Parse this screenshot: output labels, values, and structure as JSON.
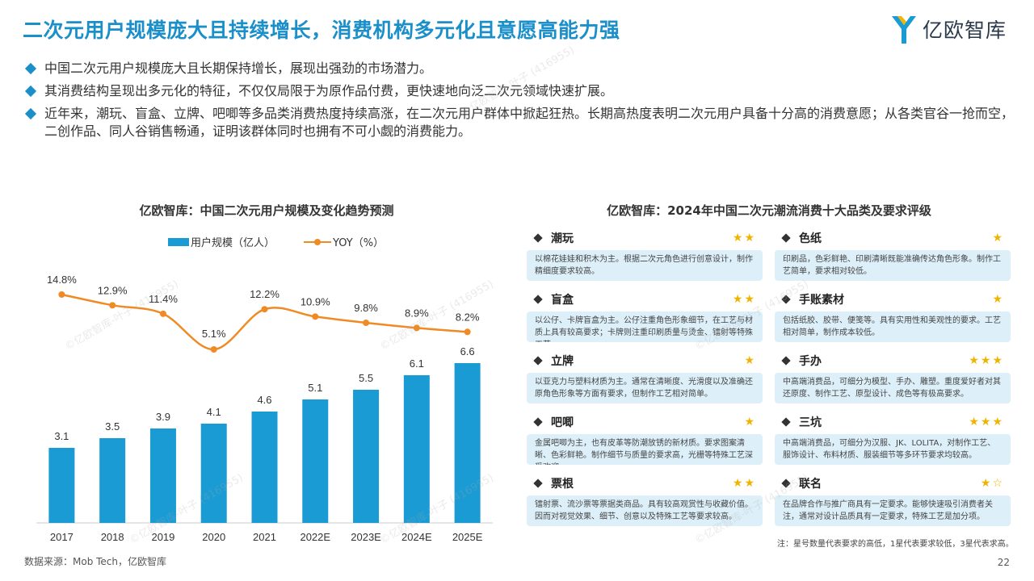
{
  "page_title": "二次元用户规模庞大且持续增长，消费机构多元化且意愿高能力强",
  "logo_text": "亿欧智库",
  "bullets": [
    "中国二次元用户规模庞大且长期保持增长，展现出强劲的市场潜力。",
    "其消费结构呈现出多元化的特征，不仅仅局限于为原作品付费，更快速地向泛二次元领域快速扩展。",
    "近年来，潮玩、盲盒、立牌、吧唧等多品类消费热度持续高涨，在二次元用户群体中掀起狂热。长期高热度表明二次元用户具备十分高的消费意愿；从各类官谷一抢而空，二创作品、同人谷销售畅通，证明该群体同时也拥有不可小觑的消费能力。"
  ],
  "left_chart_title": "亿欧智库：中国二次元用户规模及变化趋势预测",
  "right_chart_title": "亿欧智库：2024年中国二次元潮流消费十大品类及要求评级",
  "legend": {
    "bar": "用户规模（亿人）",
    "line": "YOY（%）"
  },
  "colors": {
    "bar": "#1a9bd4",
    "line": "#f08a24",
    "title": "#1a8fc9",
    "star": "#f0b400"
  },
  "chart_data": {
    "type": "bar",
    "categories": [
      "2017",
      "2018",
      "2019",
      "2020",
      "2021",
      "2022E",
      "2023E",
      "2024E",
      "2025E"
    ],
    "series": [
      {
        "name": "用户规模（亿人）",
        "type": "bar",
        "values": [
          3.1,
          3.5,
          3.9,
          4.1,
          4.6,
          5.1,
          5.5,
          6.1,
          6.6
        ],
        "labels": [
          "3.1",
          "3.5",
          "3.9",
          "4.1",
          "4.6",
          "5.1",
          "5.5",
          "6.1",
          "6.6"
        ]
      },
      {
        "name": "YOY（%）",
        "type": "line",
        "values": [
          14.8,
          12.9,
          11.4,
          5.1,
          12.2,
          10.9,
          9.8,
          8.9,
          8.2
        ],
        "labels": [
          "14.8%",
          "12.9%",
          "11.4%",
          "5.1%",
          "12.2%",
          "10.9%",
          "9.8%",
          "8.9%",
          "8.2%"
        ]
      }
    ]
  },
  "categories": [
    {
      "name": "潮玩",
      "stars": 2,
      "half": 0,
      "desc": "以棉花娃娃和积木为主。根据二次元角色进行创意设计，制作精细度要求较高。"
    },
    {
      "name": "色纸",
      "stars": 1,
      "half": 0,
      "desc": "印刷品，色彩鲜艳、印刷清晰既能准确传达角色形象。制作工艺简单，要求相对较低。"
    },
    {
      "name": "盲盒",
      "stars": 2,
      "half": 0,
      "desc": "以公仔、卡牌盲盒为主。公仔注重角色形象细节，在工艺与材质上具有较高要求；卡牌则注重印刷质量与烫金、镭射等特殊工艺。"
    },
    {
      "name": "手账素材",
      "stars": 1,
      "half": 0,
      "desc": "包括纸胶、胶带、便笺等。具有实用性和美观性的要求。工艺相对简单，制作成本较低。"
    },
    {
      "name": "立牌",
      "stars": 1,
      "half": 0,
      "desc": "以亚克力与塑料材质为主。通常在清晰度、光滑度以及准确还原角色形象等方面有要求，但制作工艺相对简单。"
    },
    {
      "name": "手办",
      "stars": 3,
      "half": 0,
      "desc": "中高端消费品，可细分为模型、手办、雕塑。重度爱好者对其还原度、制作工艺、原型设计、成色等有极高要求。"
    },
    {
      "name": "吧唧",
      "stars": 1,
      "half": 0,
      "desc": "金属吧唧为主，也有皮革等防潮放锈的新材质。要求图案清晰、色彩鲜艳。制作细节与质量的要求高，光栅等特殊工艺深受欢迎。"
    },
    {
      "name": "三坑",
      "stars": 3,
      "half": 0,
      "desc": "中高端消费品，可细分为汉服、JK、LOLITA，对制作工艺、服饰设计、布料材质、服装细节等多环节要求均较高。"
    },
    {
      "name": "票根",
      "stars": 2,
      "half": 0,
      "desc": "镭射票、流沙票等票据类商品。具有较高观赏性与收藏价值。因而对视觉效果、细节、创意以及特殊工艺等要求较高。"
    },
    {
      "name": "联名",
      "stars": 1,
      "half": 1,
      "desc": "在品牌合作与推广商具有一定要求。能够快速吸引消费者关注，通常对设计品质具有一定要求，特殊工艺是加分项。"
    }
  ],
  "note": "注：星号数量代表要求的高低，1星代表要求较低，3星代表求高。",
  "source": "数据来源：Mob Tech，亿欧智库",
  "page_number": "22"
}
